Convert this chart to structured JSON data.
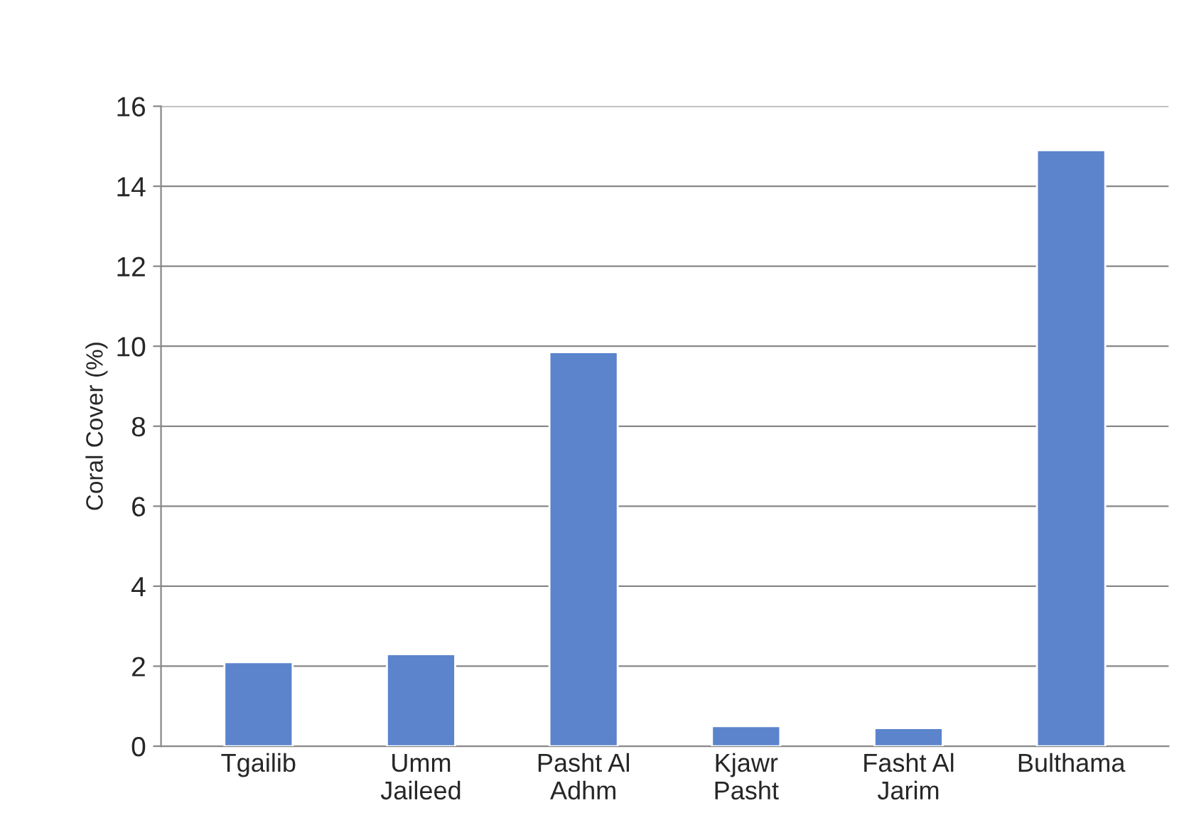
{
  "chart_data": {
    "type": "bar",
    "ylabel": "Coral Cover (%)",
    "categories": [
      "Tgailib",
      "Umm\nJaileed",
      "Pasht Al\nAdhm",
      "Kjawr\nPasht",
      "Fasht Al\nJarim",
      "Bulthama"
    ],
    "values": [
      2.1,
      2.3,
      9.85,
      0.5,
      0.45,
      14.9
    ],
    "color": "#5b84cc",
    "ylim": [
      0,
      16
    ],
    "yticks": [
      0,
      2,
      4,
      6,
      8,
      10,
      12,
      14,
      16
    ],
    "grid": "y"
  }
}
